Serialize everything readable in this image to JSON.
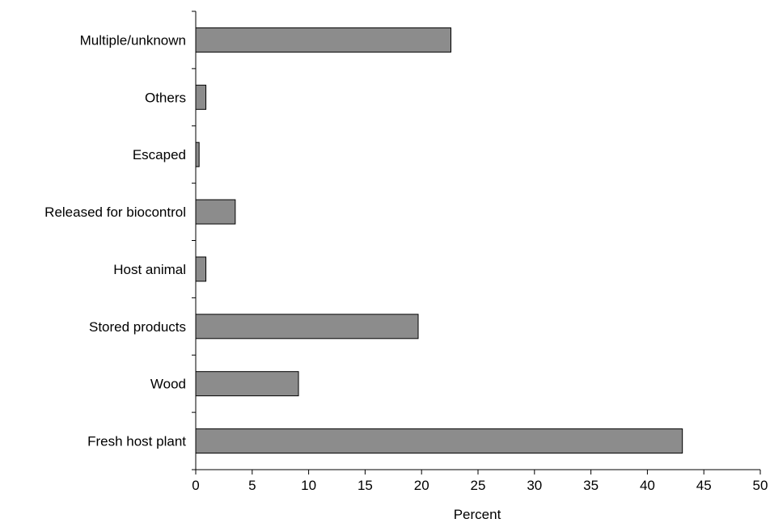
{
  "chart_data": {
    "type": "bar",
    "orientation": "horizontal",
    "title": "",
    "xlabel": "Percent",
    "ylabel": "",
    "xlim": [
      0,
      50
    ],
    "x_ticks": [
      "0",
      "5",
      "10",
      "15",
      "20",
      "25",
      "30",
      "35",
      "40",
      "45",
      "50"
    ],
    "grid": false,
    "categories": [
      "Multiple/unknown",
      "Others",
      "Escaped",
      "Released for biocontrol",
      "Host animal",
      "Stored products",
      "Wood",
      "Fresh host plant"
    ],
    "values": [
      22.6,
      0.9,
      0.3,
      3.5,
      0.9,
      19.7,
      9.1,
      43.1
    ],
    "colors": {
      "bar_fill": "#8c8c8c",
      "bar_stroke": "#000000",
      "axis": "#000000"
    }
  }
}
